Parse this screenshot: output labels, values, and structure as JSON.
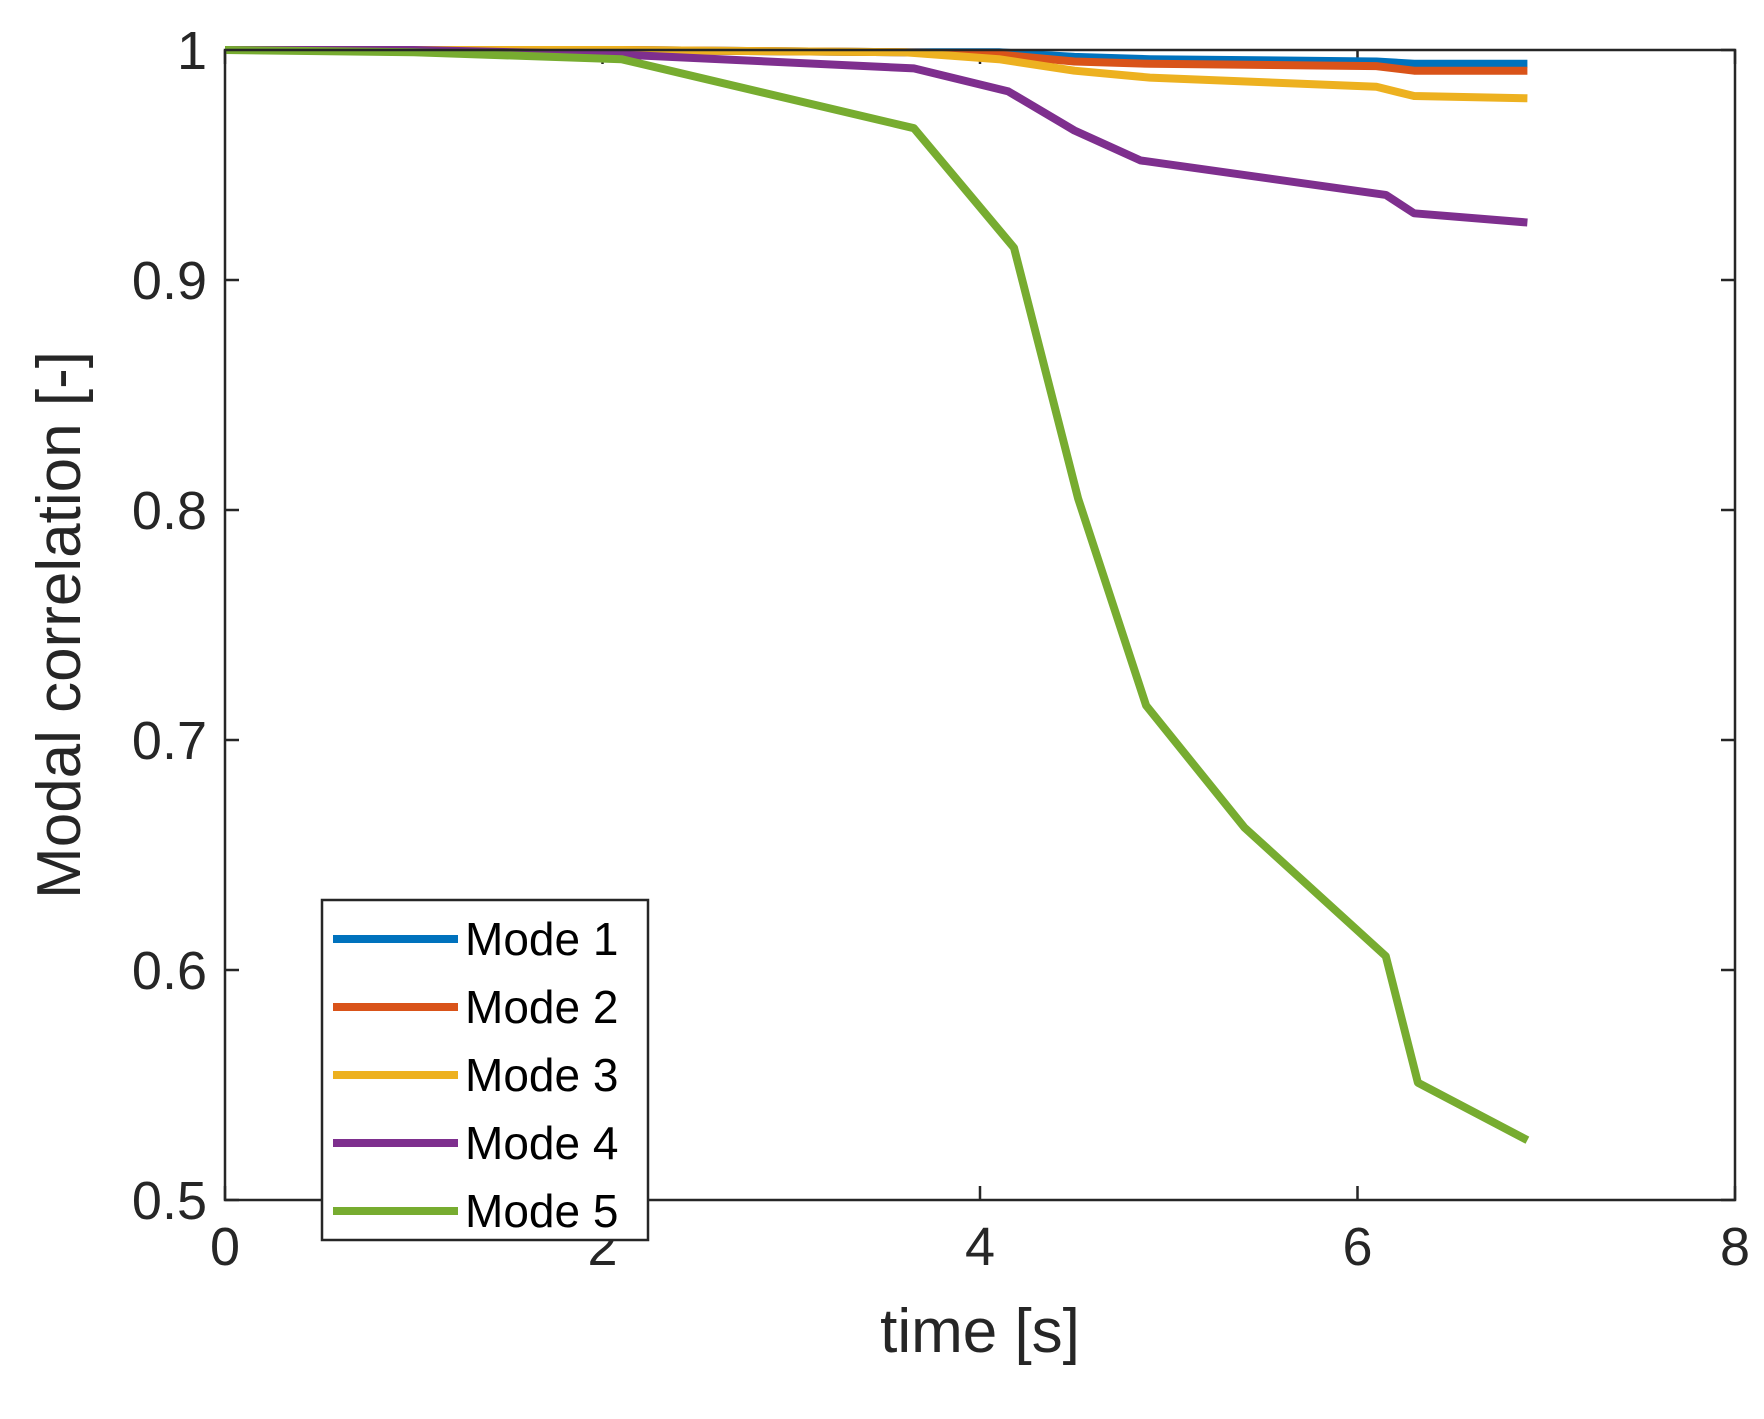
{
  "chart_data": {
    "type": "line",
    "title": "",
    "xlabel": "time [s]",
    "ylabel": "Modal correlation [-]",
    "xlim": [
      0,
      8
    ],
    "ylim": [
      0.5,
      1
    ],
    "xticks": [
      0,
      2,
      4,
      6,
      8
    ],
    "xtick_labels": [
      "0",
      "2",
      "4",
      "6",
      "8"
    ],
    "yticks": [
      0.5,
      0.6,
      0.7,
      0.8,
      0.9,
      1
    ],
    "ytick_labels": [
      "0.5",
      "0.6",
      "0.7",
      "0.8",
      "0.9",
      "1"
    ],
    "grid": false,
    "legend_position": "bottom-left",
    "series": [
      {
        "name": "Mode 1",
        "color": "#0072BD",
        "x": [
          0,
          1,
          2.1,
          3.6,
          4.1,
          4.5,
          4.9,
          6.1,
          6.3,
          6.9
        ],
        "y": [
          1,
          1,
          1,
          0.999,
          0.999,
          0.997,
          0.996,
          0.995,
          0.994,
          0.994
        ]
      },
      {
        "name": "Mode 2",
        "color": "#D95319",
        "x": [
          0,
          1,
          2.1,
          3.6,
          4.1,
          4.5,
          4.9,
          6.1,
          6.3,
          6.9
        ],
        "y": [
          1,
          1,
          1,
          0.999,
          0.998,
          0.995,
          0.994,
          0.993,
          0.991,
          0.991
        ]
      },
      {
        "name": "Mode 3",
        "color": "#EDB120",
        "x": [
          0,
          1,
          2.1,
          3.6,
          4.1,
          4.5,
          4.9,
          6.1,
          6.3,
          6.9
        ],
        "y": [
          1,
          1,
          1,
          0.999,
          0.996,
          0.991,
          0.988,
          0.984,
          0.98,
          0.979
        ]
      },
      {
        "name": "Mode 4",
        "color": "#7E2F8E",
        "x": [
          0,
          1,
          2.1,
          3.65,
          4.15,
          4.5,
          4.85,
          6.15,
          6.3,
          6.9
        ],
        "y": [
          1,
          1,
          0.998,
          0.992,
          0.982,
          0.965,
          0.952,
          0.937,
          0.929,
          0.925
        ]
      },
      {
        "name": "Mode 5",
        "color": "#77AC30",
        "x": [
          0,
          1,
          2.1,
          3.65,
          4.18,
          4.52,
          4.88,
          5.4,
          6.15,
          6.32,
          6.9
        ],
        "y": [
          1,
          0.999,
          0.996,
          0.966,
          0.914,
          0.805,
          0.715,
          0.662,
          0.606,
          0.551,
          0.526
        ]
      }
    ]
  }
}
